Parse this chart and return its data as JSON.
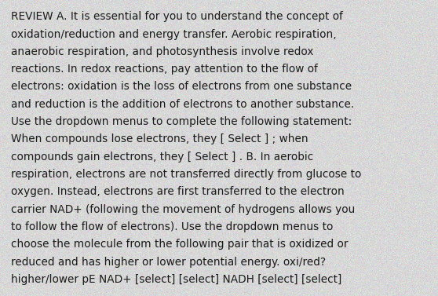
{
  "background_color": "#d8d8d8",
  "text_color": "#1a1a1a",
  "font_size": 9.8,
  "font_family": "DejaVu Sans",
  "lines": [
    "REVIEW A. It is essential for you to understand the concept of",
    "oxidation/reduction and energy transfer. Aerobic respiration,",
    "anaerobic respiration, and photosynthesis involve redox",
    "reactions. In redox reactions, pay attention to the flow of",
    "electrons: oxidation is the loss of electrons from one substance",
    "and reduction is the addition of electrons to another substance.",
    "Use the dropdown menus to complete the following statement:",
    "When compounds lose electrons, they [ Select ] ; when",
    "compounds gain electrons, they [ Select ] . B. In aerobic",
    "respiration, electrons are not transferred directly from glucose to",
    "oxygen. Instead, electrons are first transferred to the electron",
    "carrier NAD+ (following the movement of hydrogens allows you",
    "to follow the flow of electrons). Use the dropdown menus to",
    "choose the molecule from the following pair that is oxidized or",
    "reduced and has higher or lower potential energy. oxi/red?",
    "higher/lower pE NAD+ [select] [select] NADH [select] [select]"
  ]
}
